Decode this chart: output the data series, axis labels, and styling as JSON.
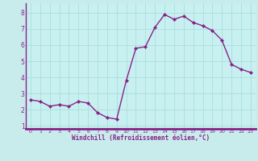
{
  "x": [
    0,
    1,
    2,
    3,
    4,
    5,
    6,
    7,
    8,
    9,
    10,
    11,
    12,
    13,
    14,
    15,
    16,
    17,
    18,
    19,
    20,
    21,
    22,
    23
  ],
  "y": [
    2.6,
    2.5,
    2.2,
    2.3,
    2.2,
    2.5,
    2.4,
    1.8,
    1.5,
    1.4,
    3.8,
    5.8,
    5.9,
    7.1,
    7.9,
    7.6,
    7.8,
    7.4,
    7.2,
    6.9,
    6.3,
    4.8,
    4.5,
    4.3
  ],
  "line_color": "#882288",
  "marker": "D",
  "marker_size": 2,
  "bg_color": "#c8ecec",
  "plot_bg_color": "#c8f0f0",
  "grid_color": "#aadddd",
  "xlabel": "Windchill (Refroidissement éolien,°C)",
  "xlabel_color": "#882288",
  "tick_color": "#882288",
  "axis_color": "#882288",
  "xlim": [
    -0.5,
    23.5
  ],
  "ylim": [
    0.8,
    8.6
  ],
  "yticks": [
    1,
    2,
    3,
    4,
    5,
    6,
    7,
    8
  ],
  "xticks": [
    0,
    1,
    2,
    3,
    4,
    5,
    6,
    7,
    8,
    9,
    10,
    11,
    12,
    13,
    14,
    15,
    16,
    17,
    18,
    19,
    20,
    21,
    22,
    23
  ],
  "line_width": 1.0,
  "bottom_bar_color": "#882288"
}
